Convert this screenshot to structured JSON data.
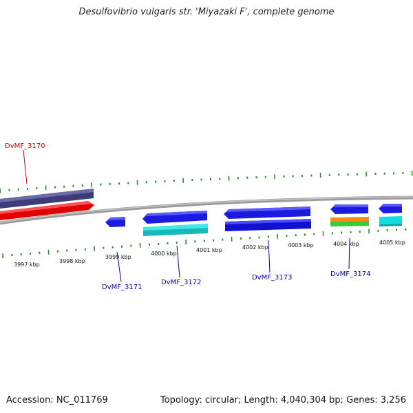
{
  "title": "Desulfovibrio vulgaris str. 'Miyazaki F', complete genome",
  "footer": {
    "accession": "Accession: NC_011769",
    "summary": "Topology: circular; Length: 4,040,304 bp; Genes: 3,256"
  },
  "colors": {
    "backbone": "#8a8a8a",
    "tick": "#2e8b2e",
    "gene_forward_top": "#4a4a8a",
    "gene_forward_bottom": "#ff1a1a",
    "gene_reverse_top": "#1a1aee",
    "gene_reverse_bottom_cyan": "#33dddd",
    "gene_reverse_bottom_orange": "#ff8c1a",
    "gene_reverse_bottom_green": "#44cc44",
    "label_forward": "#cc0000",
    "label_reverse": "#0000aa"
  },
  "scale_labels": [
    "3997 kbp",
    "3998 kbp",
    "3999 kbp",
    "4000 kbp",
    "4001 kbp",
    "4002 kbp",
    "4003 kbp",
    "4004 kbp",
    "4005 kbp"
  ],
  "gene_labels": [
    {
      "text": "DvMF_3170",
      "strand": "forward"
    },
    {
      "text": "DvMF_3171",
      "strand": "reverse"
    },
    {
      "text": "DvMF_3172",
      "strand": "reverse"
    },
    {
      "text": "DvMF_3173",
      "strand": "reverse"
    },
    {
      "text": "DvMF_3174",
      "strand": "reverse"
    }
  ]
}
